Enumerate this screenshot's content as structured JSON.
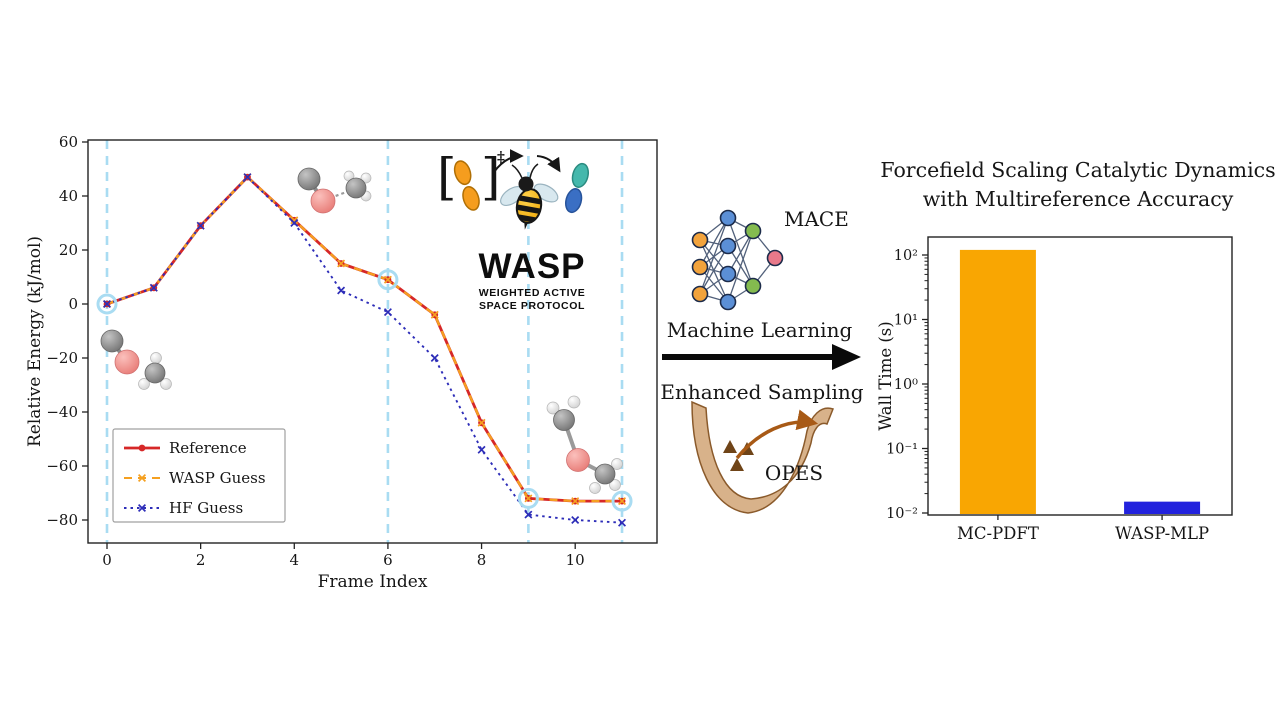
{
  "chart_data": [
    {
      "type": "line",
      "title": "",
      "xlabel": "Frame Index",
      "ylabel": "Relative Energy (kJ/mol)",
      "x": [
        0,
        1,
        2,
        3,
        4,
        5,
        6,
        7,
        8,
        9,
        10,
        11
      ],
      "xticks": [
        0,
        2,
        4,
        6,
        8,
        10
      ],
      "yticks": [
        60,
        40,
        20,
        0,
        -20,
        -40,
        -60,
        -80
      ],
      "xlim": [
        -0.45,
        11.75
      ],
      "ylim": [
        -88,
        61
      ],
      "grid": false,
      "legend_position": "lower left",
      "vlines": [
        0,
        6,
        9,
        11
      ],
      "vline_color": "#a9dcf2",
      "highlight_frames": [
        0,
        6,
        9,
        11
      ],
      "series": [
        {
          "name": "Reference",
          "color": "#d62728",
          "style": "solid",
          "marker": "circle",
          "values": [
            0,
            6,
            29,
            47,
            31,
            15,
            9,
            -4,
            -44,
            -72,
            -73,
            -73
          ]
        },
        {
          "name": "WASP Guess",
          "color": "#f5a020",
          "style": "dashed",
          "marker": "x",
          "values": [
            0,
            6,
            29,
            47,
            31,
            15,
            9,
            -4,
            -44,
            -72,
            -73,
            -73
          ]
        },
        {
          "name": "HF Guess",
          "color": "#2d2db8",
          "style": "dotted",
          "marker": "x",
          "values": [
            0,
            6,
            29,
            47,
            30,
            5,
            -3,
            -20,
            -54,
            -78,
            -80,
            -81
          ]
        }
      ]
    },
    {
      "type": "bar",
      "title": "Forcefield Scaling Catalytic Dynamics with Multireference Accuracy",
      "xlabel": "",
      "ylabel": "Wall Time (s)",
      "yscale": "log",
      "ylim": [
        0.01,
        190
      ],
      "categories": [
        "MC-PDFT",
        "WASP-MLP"
      ],
      "values": [
        120,
        0.015
      ],
      "colors": [
        "#f9a602",
        "#2222dd"
      ],
      "yticks": [
        {
          "value": 100,
          "label": "10²"
        },
        {
          "value": 10,
          "label": "10¹"
        },
        {
          "value": 1,
          "label": "10⁰"
        },
        {
          "value": 0.1,
          "label": "10⁻¹"
        },
        {
          "value": 0.01,
          "label": "10⁻²"
        }
      ]
    }
  ],
  "logo": {
    "bracket_open": "[",
    "bracket_close": "]",
    "ts_symbol": "‡",
    "name": "WASP",
    "subtitle_line1": "WEIGHTED ACTIVE",
    "subtitle_line2": "SPACE PROTOCOL"
  },
  "middle": {
    "mace_label": "MACE",
    "ml_label": "Machine Learning",
    "es_label": "Enhanced Sampling",
    "opes_label": "OPES"
  }
}
